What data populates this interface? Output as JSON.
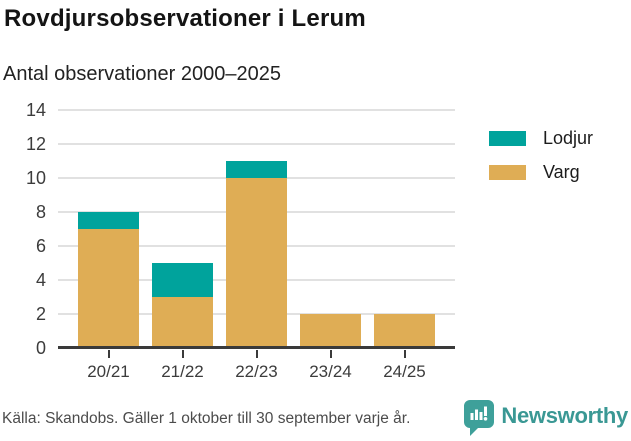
{
  "header": {
    "title": "Rovdjursobservationer i Lerum",
    "subtitle": "Antal observationer 2000–2025"
  },
  "chart_data": {
    "type": "bar",
    "stacked": true,
    "title": "Rovdjursobservationer i Lerum",
    "subtitle": "Antal observationer 2000–2025",
    "xlabel": "",
    "ylabel": "",
    "categories": [
      "20/21",
      "21/22",
      "22/23",
      "23/24",
      "24/25"
    ],
    "series": [
      {
        "name": "Lodjur",
        "color": "#00A39C",
        "values": [
          1,
          2,
          1,
          0,
          0
        ]
      },
      {
        "name": "Varg",
        "color": "#DFAD55",
        "values": [
          7,
          3,
          10,
          2,
          2
        ]
      }
    ],
    "totals": [
      8,
      5,
      11,
      2,
      2
    ],
    "ylim": [
      0,
      14
    ],
    "yticks": [
      0,
      2,
      4,
      6,
      8,
      10,
      12,
      14
    ],
    "grid": true,
    "legend_position": "right"
  },
  "legend": {
    "items": [
      {
        "label": "Lodjur",
        "color": "#00A39C"
      },
      {
        "label": "Varg",
        "color": "#DFAD55"
      }
    ]
  },
  "footer": {
    "source": "Källa: Skandobs. Gäller 1 oktober till 30 september varje år.",
    "brand": "Newsworthy",
    "brand_icon": "newsworthy-speech-bubble-chart-icon"
  },
  "colors": {
    "lodjur": "#00A39C",
    "varg": "#DFAD55",
    "axis": "#3a3a3a",
    "gridline": "#e1e1e1",
    "brand_teal": "#3EA09A"
  }
}
